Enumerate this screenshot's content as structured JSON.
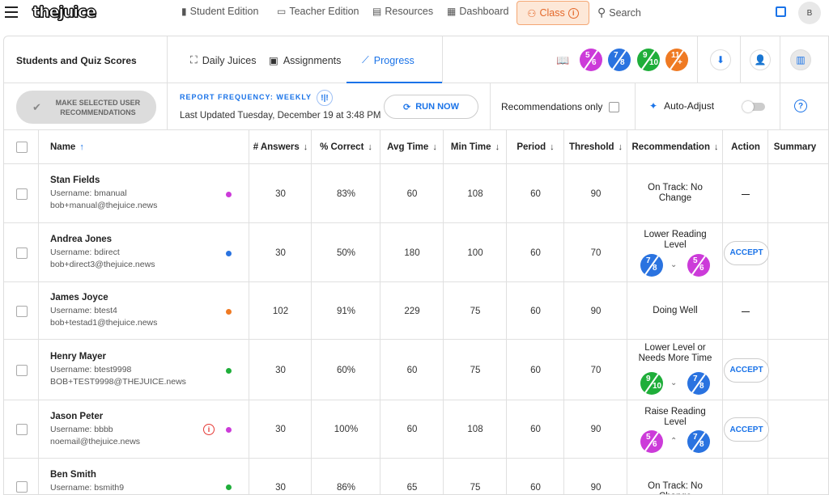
{
  "nav": {
    "logo": "thejuice",
    "links": [
      {
        "label": "Student Edition",
        "icon": "student-edition-icon"
      },
      {
        "label": "Teacher Edition",
        "icon": "teacher-edition-icon"
      },
      {
        "label": "Resources",
        "icon": "resources-icon"
      },
      {
        "label": "Dashboard",
        "icon": "dashboard-icon"
      }
    ],
    "class_label": "Class",
    "search_label": "Search",
    "avatar_initial": "B"
  },
  "panel": {
    "title": "Students and Quiz Scores",
    "tabs": [
      {
        "label": "Daily Juices"
      },
      {
        "label": "Assignments"
      },
      {
        "label": "Progress",
        "active": true
      }
    ],
    "badges": [
      {
        "num": "5",
        "den": "6",
        "color": "#cc3bd9"
      },
      {
        "num": "7",
        "den": "8",
        "color": "#2a73e0"
      },
      {
        "num": "9",
        "den": "10",
        "color": "#1fae3a"
      },
      {
        "num": "11",
        "den": "+",
        "color": "#ef7a23"
      }
    ]
  },
  "toolbar": {
    "make_rec_label": "MAKE SELECTED USER RECOMMENDATIONS",
    "report_frequency": "REPORT FREQUENCY: WEEKLY",
    "last_updated": "Last Updated Tuesday, December 19 at 3:48 PM",
    "run_now": "RUN NOW",
    "recommendations_only": "Recommendations only",
    "auto_adjust": "Auto-Adjust"
  },
  "table": {
    "headers": [
      "Name",
      "# Answers",
      "% Correct",
      "Avg Time",
      "Min Time",
      "Period",
      "Threshold",
      "Recommendation",
      "Action",
      "Summary"
    ],
    "accept_label": "ACCEPT",
    "rows": [
      {
        "name": "Stan Fields",
        "username": "Username: bmanual",
        "email": "bob+manual@thejuice.news",
        "dot": "#cc3bd9",
        "answers": "30",
        "correct": "83%",
        "avg": "60",
        "min": "108",
        "period": "60",
        "threshold": "90",
        "rec": "On Track: No Change",
        "action": "—",
        "warn": false
      },
      {
        "name": "Andrea Jones",
        "username": "Username: bdirect",
        "email": "bob+direct3@thejuice.news",
        "dot": "#2a73e0",
        "answers": "30",
        "correct": "50%",
        "avg": "180",
        "min": "100",
        "period": "60",
        "threshold": "70",
        "rec": "Lower Reading Level",
        "action": "ACCEPT",
        "from": {
          "num": "7",
          "den": "8",
          "color": "#2a73e0"
        },
        "to": {
          "num": "5",
          "den": "6",
          "color": "#cc3bd9"
        },
        "chev": "down"
      },
      {
        "name": "James Joyce",
        "username": "Username: btest4",
        "email": "bob+testad1@thejuice.news",
        "dot": "#ef7a23",
        "answers": "102",
        "correct": "91%",
        "avg": "229",
        "min": "75",
        "period": "60",
        "threshold": "90",
        "rec": "Doing Well",
        "action": "—"
      },
      {
        "name": "Henry Mayer",
        "username": "Username: btest9998",
        "email": "BOB+TEST9998@THEJUICE.news",
        "dot": "#1fae3a",
        "answers": "30",
        "correct": "60%",
        "avg": "60",
        "min": "75",
        "period": "60",
        "threshold": "70",
        "rec": "Lower Level or Needs More Time",
        "action": "ACCEPT",
        "from": {
          "num": "9",
          "den": "10",
          "color": "#1fae3a"
        },
        "to": {
          "num": "7",
          "den": "8",
          "color": "#2a73e0"
        },
        "chev": "down"
      },
      {
        "name": "Jason Peter",
        "username": "Username: bbbb",
        "email": "noemail@thejuice.news",
        "dot": "#cc3bd9",
        "answers": "30",
        "correct": "100%",
        "avg": "60",
        "min": "108",
        "period": "60",
        "threshold": "90",
        "rec": "Raise Reading Level",
        "action": "ACCEPT",
        "from": {
          "num": "5",
          "den": "6",
          "color": "#cc3bd9"
        },
        "to": {
          "num": "7",
          "den": "8",
          "color": "#2a73e0"
        },
        "chev": "up",
        "warn": true
      },
      {
        "name": "Ben Smith",
        "username": "Username: bsmith9",
        "email": "",
        "dot": "#1fae3a",
        "answers": "30",
        "correct": "86%",
        "avg": "65",
        "min": "75",
        "period": "60",
        "threshold": "90",
        "rec": "On Track: No Change",
        "action": ""
      }
    ]
  }
}
